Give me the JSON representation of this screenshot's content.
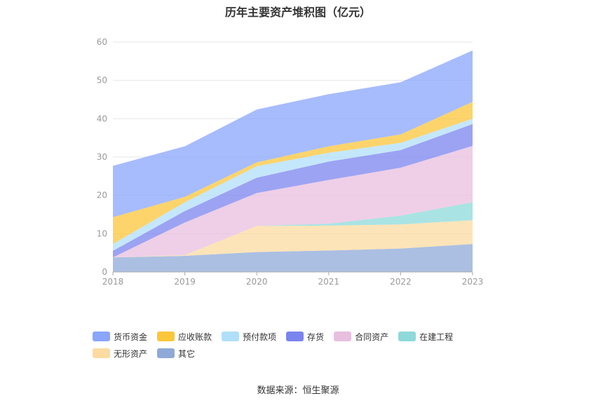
{
  "chart_data": {
    "type": "area",
    "stacked": true,
    "title": "历年主要资产堆积图（亿元）",
    "categories": [
      "2018",
      "2019",
      "2020",
      "2021",
      "2022",
      "2023"
    ],
    "ylim": [
      0,
      60
    ],
    "yticks": [
      0,
      10,
      20,
      30,
      40,
      50,
      60
    ],
    "grid": true,
    "legend_position": "bottom",
    "series": [
      {
        "name": "其它",
        "color": "#8fa9d8",
        "values": [
          3.8,
          4.2,
          5.2,
          5.6,
          6.1,
          7.3
        ]
      },
      {
        "name": "无形资产",
        "color": "#fcdba0",
        "values": [
          0.0,
          0.2,
          6.8,
          6.5,
          6.3,
          6.2
        ]
      },
      {
        "name": "在建工程",
        "color": "#8ed9d9",
        "values": [
          0.0,
          0.0,
          0.0,
          0.5,
          2.3,
          4.7
        ]
      },
      {
        "name": "合同资产",
        "color": "#e8bfdf",
        "values": [
          0.0,
          8.5,
          8.6,
          11.4,
          12.5,
          14.7
        ]
      },
      {
        "name": "存货",
        "color": "#7b84ee",
        "values": [
          1.7,
          3.0,
          4.0,
          4.8,
          4.6,
          5.7
        ]
      },
      {
        "name": "预付款项",
        "color": "#b1dff9",
        "values": [
          1.8,
          2.3,
          3.0,
          2.3,
          1.9,
          1.4
        ]
      },
      {
        "name": "应收账款",
        "color": "#fbc63a",
        "values": [
          7.0,
          1.4,
          1.0,
          1.7,
          2.2,
          4.4
        ]
      },
      {
        "name": "货币资金",
        "color": "#89a6fb",
        "values": [
          13.4,
          13.2,
          13.8,
          13.6,
          13.6,
          13.4
        ]
      }
    ],
    "legend_order": [
      "货币资金",
      "应收账款",
      "预付款项",
      "存货",
      "合同资产",
      "在建工程",
      "无形资产",
      "其它"
    ]
  },
  "footer": {
    "source": "数据来源：恒生聚源"
  }
}
